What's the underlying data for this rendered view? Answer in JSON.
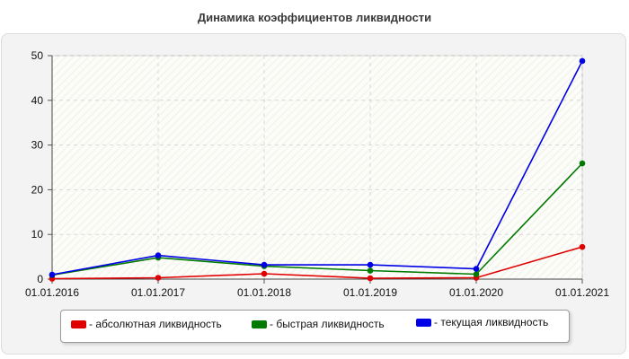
{
  "chart_data": {
    "type": "line",
    "title": "Динамика коэффициентов ликвидности",
    "x": [
      "01.01.2016",
      "01.01.2017",
      "01.01.2018",
      "01.01.2019",
      "01.01.2020",
      "01.01.2021"
    ],
    "ylim": [
      0,
      50
    ],
    "yticks": [
      "0",
      "10",
      "20",
      "30",
      "40",
      "50"
    ],
    "grid": true,
    "legend_position": "bottom",
    "series": [
      {
        "name": "- абсолютная ликвидность",
        "color": "#e00000",
        "values": [
          0.1,
          0.3,
          1.2,
          0.2,
          0.3,
          7.2
        ]
      },
      {
        "name": "- быстрая ликвидность",
        "color": "#007a00",
        "values": [
          0.9,
          4.8,
          2.9,
          1.9,
          1.1,
          25.9
        ]
      },
      {
        "name": "- текущая ликвидность",
        "color": "#0000e6",
        "values": [
          1.0,
          5.3,
          3.2,
          3.2,
          2.3,
          48.8
        ]
      }
    ]
  }
}
